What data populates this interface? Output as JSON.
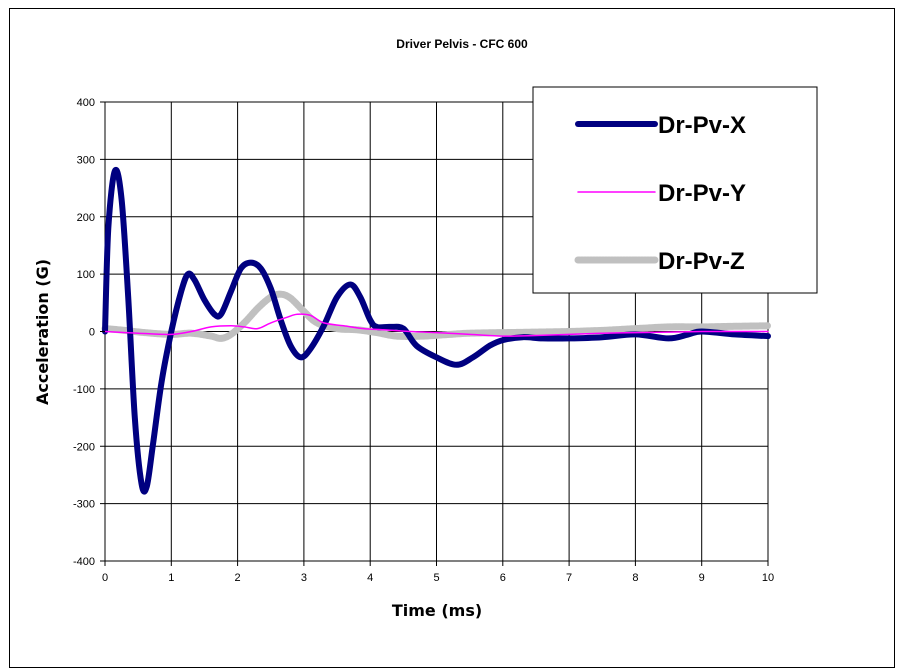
{
  "chart_data": {
    "type": "line",
    "title": "Driver Pelvis - CFC 600",
    "xlabel": "Time (ms)",
    "ylabel": "Acceleration (G)",
    "xlim": [
      0,
      10
    ],
    "ylim": [
      -400,
      400
    ],
    "x_ticks": [
      0,
      1,
      2,
      3,
      4,
      5,
      6,
      7,
      8,
      9,
      10
    ],
    "y_ticks": [
      -400,
      -300,
      -200,
      -100,
      0,
      100,
      200,
      300,
      400
    ],
    "grid": true,
    "legend_position": "top-right",
    "series": [
      {
        "name": "Dr-Pv-X",
        "color": "#000080",
        "points": [
          [
            0,
            0
          ],
          [
            0.05,
            180
          ],
          [
            0.15,
            280
          ],
          [
            0.25,
            230
          ],
          [
            0.35,
            60
          ],
          [
            0.45,
            -150
          ],
          [
            0.55,
            -265
          ],
          [
            0.63,
            -270
          ],
          [
            0.72,
            -200
          ],
          [
            0.85,
            -90
          ],
          [
            1.0,
            0
          ],
          [
            1.15,
            70
          ],
          [
            1.25,
            100
          ],
          [
            1.35,
            90
          ],
          [
            1.5,
            55
          ],
          [
            1.65,
            30
          ],
          [
            1.75,
            30
          ],
          [
            1.9,
            70
          ],
          [
            2.05,
            110
          ],
          [
            2.2,
            120
          ],
          [
            2.35,
            110
          ],
          [
            2.5,
            75
          ],
          [
            2.65,
            20
          ],
          [
            2.8,
            -25
          ],
          [
            2.95,
            -45
          ],
          [
            3.1,
            -30
          ],
          [
            3.3,
            10
          ],
          [
            3.5,
            60
          ],
          [
            3.7,
            82
          ],
          [
            3.85,
            60
          ],
          [
            4.0,
            20
          ],
          [
            4.1,
            8
          ],
          [
            4.3,
            8
          ],
          [
            4.5,
            5
          ],
          [
            4.7,
            -25
          ],
          [
            5.0,
            -45
          ],
          [
            5.3,
            -58
          ],
          [
            5.55,
            -45
          ],
          [
            5.8,
            -25
          ],
          [
            6.0,
            -15
          ],
          [
            6.3,
            -10
          ],
          [
            6.6,
            -12
          ],
          [
            7.0,
            -12
          ],
          [
            7.5,
            -10
          ],
          [
            8.0,
            -5
          ],
          [
            8.5,
            -12
          ],
          [
            8.8,
            -5
          ],
          [
            9.0,
            0
          ],
          [
            9.5,
            -5
          ],
          [
            10.0,
            -8
          ]
        ]
      },
      {
        "name": "Dr-Pv-Y",
        "color": "#ff00ff",
        "points": [
          [
            0,
            0
          ],
          [
            0.5,
            -3
          ],
          [
            1.0,
            -5
          ],
          [
            1.3,
            0
          ],
          [
            1.6,
            8
          ],
          [
            1.9,
            10
          ],
          [
            2.1,
            8
          ],
          [
            2.3,
            5
          ],
          [
            2.5,
            15
          ],
          [
            2.75,
            25
          ],
          [
            2.9,
            30
          ],
          [
            3.1,
            28
          ],
          [
            3.3,
            15
          ],
          [
            3.6,
            10
          ],
          [
            3.9,
            5
          ],
          [
            4.2,
            3
          ],
          [
            4.6,
            0
          ],
          [
            5.0,
            -2
          ],
          [
            5.5,
            -5
          ],
          [
            6.0,
            -8
          ],
          [
            6.5,
            -7
          ],
          [
            7.0,
            -5
          ],
          [
            7.5,
            -3
          ],
          [
            8.0,
            -2
          ],
          [
            8.5,
            -1
          ],
          [
            9.0,
            0
          ],
          [
            9.5,
            0
          ],
          [
            10.0,
            0
          ]
        ]
      },
      {
        "name": "Dr-Pv-Z",
        "color": "#c0c0c0",
        "points": [
          [
            0,
            5
          ],
          [
            0.3,
            2
          ],
          [
            0.6,
            -2
          ],
          [
            1.0,
            -5
          ],
          [
            1.3,
            -3
          ],
          [
            1.6,
            -8
          ],
          [
            1.75,
            -12
          ],
          [
            1.9,
            -5
          ],
          [
            2.1,
            15
          ],
          [
            2.3,
            40
          ],
          [
            2.5,
            60
          ],
          [
            2.65,
            65
          ],
          [
            2.8,
            58
          ],
          [
            3.0,
            35
          ],
          [
            3.2,
            15
          ],
          [
            3.5,
            5
          ],
          [
            3.8,
            3
          ],
          [
            4.1,
            -2
          ],
          [
            4.4,
            -8
          ],
          [
            4.8,
            -8
          ],
          [
            5.2,
            -5
          ],
          [
            5.5,
            -3
          ],
          [
            6.0,
            -2
          ],
          [
            6.5,
            -1
          ],
          [
            7.0,
            0
          ],
          [
            7.5,
            2
          ],
          [
            8.0,
            5
          ],
          [
            8.5,
            8
          ],
          [
            9.0,
            8
          ],
          [
            9.5,
            9
          ],
          [
            10.0,
            10
          ]
        ]
      }
    ]
  }
}
